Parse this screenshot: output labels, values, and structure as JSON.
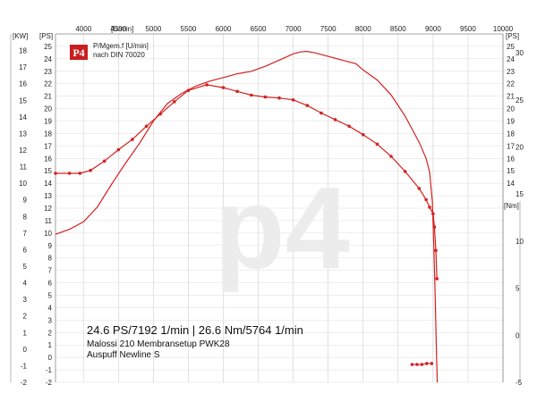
{
  "chart_data": {
    "type": "line",
    "x_axis": {
      "unit_label": "[U/min]",
      "range": [
        3600,
        10000
      ],
      "ticks": [
        "4000",
        "4500",
        "5000",
        "5500",
        "6000",
        "6500",
        "7000",
        "7500",
        "8000",
        "8500",
        "9000",
        "9500",
        "10000"
      ]
    },
    "kw_axis": {
      "unit_label": "[KW]",
      "range": [
        -2,
        19
      ],
      "ticks": [
        "-2",
        "-1",
        "0",
        "1",
        "2",
        "3",
        "4",
        "5",
        "6",
        "7",
        "8",
        "9",
        "10",
        "11",
        "12",
        "13",
        "14",
        "15",
        "16",
        "17",
        "18"
      ]
    },
    "ps_axis": {
      "unit_label": "[PS]",
      "range": [
        -2,
        26
      ],
      "ticks": [
        "-2",
        "-1",
        "0",
        "1",
        "2",
        "3",
        "4",
        "5",
        "6",
        "7",
        "8",
        "9",
        "10",
        "11",
        "12",
        "13",
        "14",
        "15",
        "16",
        "17",
        "18",
        "19",
        "20",
        "21",
        "22",
        "23",
        "24",
        "25"
      ]
    },
    "nm_axis": {
      "unit_label": "[Nm]",
      "range": [
        -5,
        32
      ],
      "ticks": [
        "-5",
        "0",
        "5",
        "10",
        "15",
        "20",
        "25",
        "30"
      ]
    },
    "legend": {
      "line1": "P/Mgem.f [U/min]",
      "line2": "nach DIN 70020"
    },
    "power_series": {
      "unit": "PS",
      "color": "#d42020",
      "x": [
        3600,
        3800,
        4000,
        4200,
        4400,
        4600,
        4800,
        5000,
        5200,
        5400,
        5600,
        5800,
        6000,
        6200,
        6400,
        6600,
        6800,
        7000,
        7100,
        7192,
        7300,
        7500,
        7700,
        7900,
        8000,
        8200,
        8400,
        8600,
        8800,
        8900,
        8950,
        8990,
        9010,
        9030,
        9050,
        9060,
        9060
      ],
      "y": [
        9.9,
        10.3,
        10.9,
        12.1,
        13.9,
        15.6,
        17.2,
        19.0,
        20.4,
        21.2,
        21.8,
        22.2,
        22.5,
        22.8,
        23.0,
        23.4,
        23.9,
        24.4,
        24.55,
        24.6,
        24.5,
        24.2,
        23.9,
        23.6,
        23.1,
        22.3,
        21.1,
        19.4,
        17.3,
        16.0,
        14.9,
        12.5,
        9.0,
        5.0,
        0.0,
        -2.0,
        -2.0
      ]
    },
    "torque_series": {
      "unit": "Nm",
      "color": "#d42020",
      "x": [
        3600,
        3800,
        3950,
        4100,
        4300,
        4500,
        4700,
        4900,
        5100,
        5300,
        5500,
        5764,
        6000,
        6200,
        6400,
        6600,
        6800,
        7000,
        7200,
        7400,
        7600,
        7800,
        8000,
        8200,
        8400,
        8600,
        8800,
        8900,
        8950,
        9000,
        9020,
        9040,
        9055
      ],
      "y": [
        17.2,
        17.2,
        17.2,
        17.5,
        18.5,
        19.7,
        20.8,
        22.2,
        23.5,
        24.8,
        26.0,
        26.6,
        26.3,
        25.9,
        25.5,
        25.3,
        25.2,
        25.0,
        24.4,
        23.6,
        22.9,
        22.2,
        21.3,
        20.3,
        19.0,
        17.4,
        15.6,
        14.4,
        13.6,
        12.9,
        11.5,
        9.0,
        6.0
      ]
    },
    "end_marker_series": {
      "unit": "Nm",
      "x": [
        8700,
        8770,
        8840,
        8910,
        8980
      ],
      "y": [
        -3.1,
        -3.1,
        -3.1,
        -3.0,
        -3.0
      ]
    },
    "watermark": "p4"
  },
  "info": {
    "headline": "24.6 PS/7192 1/min | 26.6 Nm/5764 1/min",
    "line2": "Malossi 210 Membransetup PWK28",
    "line3": "Auspuff Newline S"
  },
  "logo": {
    "text": "P4"
  }
}
